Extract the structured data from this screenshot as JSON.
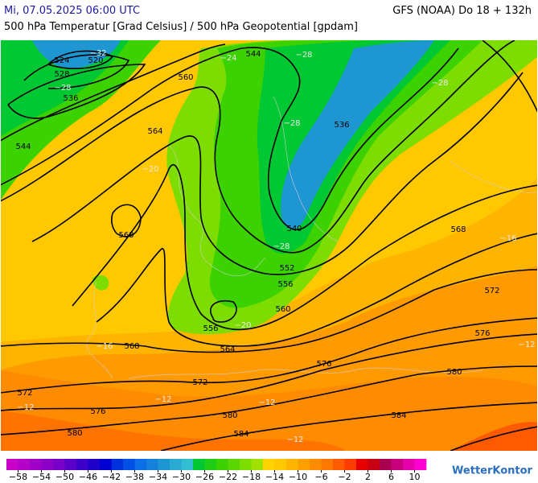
{
  "header": {
    "date": "Mi, 07.05.2025 06:00 UTC",
    "model": "GFS (NOAA) Do 18 + 132h",
    "subtitle": "500 hPa Temperatur [Grad Celsius] / 500 hPa Geopotential [gpdam]"
  },
  "contour_labels": [
    524,
    520,
    528,
    536,
    544,
    560,
    564,
    568,
    544,
    536,
    540,
    552,
    556,
    560,
    556,
    564,
    568,
    568,
    572,
    576,
    576,
    572,
    572,
    576,
    580,
    580,
    584,
    584,
    580
  ],
  "temperature_labels": [
    "−32",
    "−28",
    "−24",
    "−28",
    "−28",
    "−28",
    "−20",
    "−28",
    "−16",
    "−12",
    "−16",
    "−12",
    "−12",
    "−12",
    "−12",
    "−20"
  ],
  "colorbar": {
    "lim": [
      -60,
      12
    ],
    "ticks": [
      {
        "value": -58,
        "label": "−58"
      },
      {
        "value": -54,
        "label": "−54"
      },
      {
        "value": -50,
        "label": "−50"
      },
      {
        "value": -46,
        "label": "−46"
      },
      {
        "value": -42,
        "label": "−42"
      },
      {
        "value": -38,
        "label": "−38"
      },
      {
        "value": -34,
        "label": "−34"
      },
      {
        "value": -30,
        "label": "−30"
      },
      {
        "value": -26,
        "label": "−26"
      },
      {
        "value": -22,
        "label": "−22"
      },
      {
        "value": -18,
        "label": "−18"
      },
      {
        "value": -14,
        "label": "−14"
      },
      {
        "value": -10,
        "label": "−10"
      },
      {
        "value": -6,
        "label": "−6"
      },
      {
        "value": -2,
        "label": "−2"
      },
      2,
      6,
      10
    ],
    "colors": [
      "#c800c8",
      "#b400c8",
      "#a000c8",
      "#8c00c8",
      "#7800c8",
      "#5a00c8",
      "#3c00c8",
      "#1e00c8",
      "#0000d2",
      "#0032dc",
      "#0050e6",
      "#0a6ee6",
      "#1482dc",
      "#1e96d2",
      "#28aad2",
      "#32bed2",
      "#00c832",
      "#1ecd14",
      "#3cd200",
      "#5ad700",
      "#7ddc00",
      "#a0e100",
      "#ffd200",
      "#ffc800",
      "#ffb400",
      "#ffa000",
      "#ff8c00",
      "#ff7800",
      "#ff5a00",
      "#ff3c00",
      "#e60000",
      "#c80014",
      "#aa0050",
      "#c8007d",
      "#e600aa",
      "#ff00d2"
    ]
  },
  "brand": "WetterKontor"
}
